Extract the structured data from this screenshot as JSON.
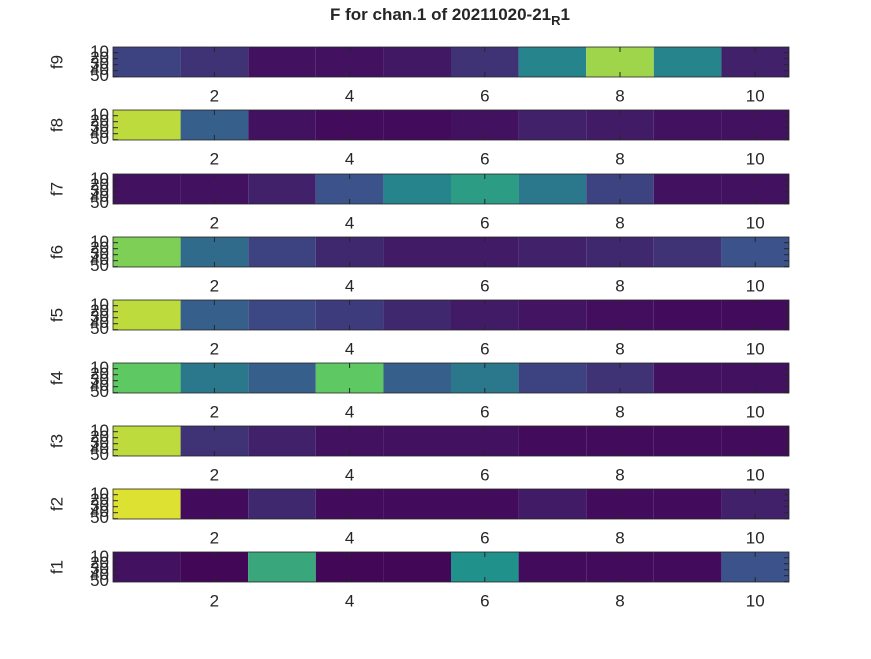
{
  "title": [
    "F for chan.1 of 20211020-21",
    "R",
    "1"
  ],
  "chart_data": [
    {
      "type": "heatmap",
      "ylabel": "f9",
      "x": [
        1,
        2,
        3,
        4,
        5,
        6,
        7,
        8,
        9,
        10
      ],
      "values": [
        0.2,
        0.15,
        0.05,
        0.05,
        0.07,
        0.15,
        0.45,
        0.85,
        0.45,
        0.1
      ],
      "xlim": [
        0.5,
        10.5
      ],
      "xticks": [
        2,
        4,
        6,
        8,
        10
      ],
      "ylim": [
        0.5,
        50.5
      ],
      "yticks": [
        10,
        20,
        30,
        40,
        50
      ],
      "clim": [
        0,
        1
      ],
      "colormap": "viridis"
    },
    {
      "type": "heatmap",
      "ylabel": "f8",
      "x": [
        1,
        2,
        3,
        4,
        5,
        6,
        7,
        8,
        9,
        10
      ],
      "values": [
        0.9,
        0.3,
        0.05,
        0.03,
        0.03,
        0.05,
        0.1,
        0.08,
        0.05,
        0.05
      ],
      "xlim": [
        0.5,
        10.5
      ],
      "xticks": [
        2,
        4,
        6,
        8,
        10
      ],
      "ylim": [
        0.5,
        50.5
      ],
      "yticks": [
        10,
        20,
        30,
        40,
        50
      ],
      "clim": [
        0,
        1
      ],
      "colormap": "viridis"
    },
    {
      "type": "heatmap",
      "ylabel": "f7",
      "x": [
        1,
        2,
        3,
        4,
        5,
        6,
        7,
        8,
        9,
        10
      ],
      "values": [
        0.05,
        0.05,
        0.1,
        0.25,
        0.45,
        0.55,
        0.4,
        0.2,
        0.05,
        0.05
      ],
      "xlim": [
        0.5,
        10.5
      ],
      "xticks": [
        2,
        4,
        6,
        8,
        10
      ],
      "ylim": [
        0.5,
        50.5
      ],
      "yticks": [
        10,
        20,
        30,
        40,
        50
      ],
      "clim": [
        0,
        1
      ],
      "colormap": "viridis"
    },
    {
      "type": "heatmap",
      "ylabel": "f6",
      "x": [
        1,
        2,
        3,
        4,
        5,
        6,
        7,
        8,
        9,
        10
      ],
      "values": [
        0.8,
        0.35,
        0.2,
        0.12,
        0.08,
        0.08,
        0.1,
        0.12,
        0.15,
        0.25
      ],
      "xlim": [
        0.5,
        10.5
      ],
      "xticks": [
        2,
        4,
        6,
        8,
        10
      ],
      "ylim": [
        0.5,
        50.5
      ],
      "yticks": [
        10,
        20,
        30,
        40,
        50
      ],
      "clim": [
        0,
        1
      ],
      "colormap": "viridis"
    },
    {
      "type": "heatmap",
      "ylabel": "f5",
      "x": [
        1,
        2,
        3,
        4,
        5,
        6,
        7,
        8,
        9,
        10
      ],
      "values": [
        0.9,
        0.3,
        0.22,
        0.18,
        0.12,
        0.08,
        0.06,
        0.04,
        0.03,
        0.03
      ],
      "xlim": [
        0.5,
        10.5
      ],
      "xticks": [
        2,
        4,
        6,
        8,
        10
      ],
      "ylim": [
        0.5,
        50.5
      ],
      "yticks": [
        10,
        20,
        30,
        40,
        50
      ],
      "clim": [
        0,
        1
      ],
      "colormap": "viridis"
    },
    {
      "type": "heatmap",
      "ylabel": "f4",
      "x": [
        1,
        2,
        3,
        4,
        5,
        6,
        7,
        8,
        9,
        10
      ],
      "values": [
        0.75,
        0.4,
        0.3,
        0.75,
        0.3,
        0.4,
        0.2,
        0.15,
        0.05,
        0.05
      ],
      "xlim": [
        0.5,
        10.5
      ],
      "xticks": [
        2,
        4,
        6,
        8,
        10
      ],
      "ylim": [
        0.5,
        50.5
      ],
      "yticks": [
        10,
        20,
        30,
        40,
        50
      ],
      "clim": [
        0,
        1
      ],
      "colormap": "viridis"
    },
    {
      "type": "heatmap",
      "ylabel": "f3",
      "x": [
        1,
        2,
        3,
        4,
        5,
        6,
        7,
        8,
        9,
        10
      ],
      "values": [
        0.9,
        0.15,
        0.1,
        0.05,
        0.05,
        0.05,
        0.03,
        0.03,
        0.03,
        0.03
      ],
      "xlim": [
        0.5,
        10.5
      ],
      "xticks": [
        2,
        4,
        6,
        8,
        10
      ],
      "ylim": [
        0.5,
        50.5
      ],
      "yticks": [
        10,
        20,
        30,
        40,
        50
      ],
      "clim": [
        0,
        1
      ],
      "colormap": "viridis"
    },
    {
      "type": "heatmap",
      "ylabel": "f2",
      "x": [
        1,
        2,
        3,
        4,
        5,
        6,
        7,
        8,
        9,
        10
      ],
      "values": [
        0.95,
        0.03,
        0.12,
        0.03,
        0.03,
        0.03,
        0.08,
        0.03,
        0.03,
        0.1
      ],
      "xlim": [
        0.5,
        10.5
      ],
      "xticks": [
        2,
        4,
        6,
        8,
        10
      ],
      "ylim": [
        0.5,
        50.5
      ],
      "yticks": [
        10,
        20,
        30,
        40,
        50
      ],
      "clim": [
        0,
        1
      ],
      "colormap": "viridis"
    },
    {
      "type": "heatmap",
      "ylabel": "f1",
      "x": [
        1,
        2,
        3,
        4,
        5,
        6,
        7,
        8,
        9,
        10
      ],
      "values": [
        0.05,
        0.02,
        0.6,
        0.02,
        0.02,
        0.5,
        0.03,
        0.03,
        0.03,
        0.25
      ],
      "xlim": [
        0.5,
        10.5
      ],
      "xticks": [
        2,
        4,
        6,
        8,
        10
      ],
      "ylim": [
        0.5,
        50.5
      ],
      "yticks": [
        10,
        20,
        30,
        40,
        50
      ],
      "clim": [
        0,
        1
      ],
      "colormap": "viridis"
    }
  ]
}
